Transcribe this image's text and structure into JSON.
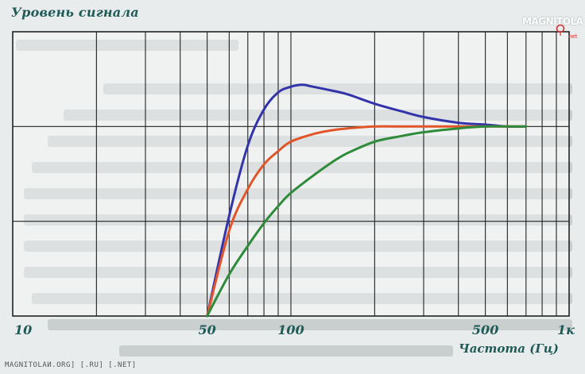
{
  "logo": {
    "text": "MAGNITOLA",
    "sub": "net"
  },
  "footer": "MAGNITOLAИ.ORG] [.RU] [.NET]",
  "chart_data": {
    "type": "line",
    "ylabel": "Уровень сигнала",
    "xlabel": "Частота (Гц)",
    "x_scale": "log",
    "xlim": [
      10,
      1000
    ],
    "ylim": [
      0,
      1.5
    ],
    "x_tick_labels": [
      {
        "x": 10,
        "label": "10"
      },
      {
        "x": 50,
        "label": "50"
      },
      {
        "x": 100,
        "label": "100"
      },
      {
        "x": 500,
        "label": "500"
      },
      {
        "x": 1000,
        "label": "1к"
      }
    ],
    "grid": true,
    "colors": {
      "series": [
        "#3333aa",
        "#e0562a",
        "#2e8b3a"
      ],
      "grid": "#222222",
      "label": "#1f5a57"
    },
    "series": [
      {
        "color": "#3333aa",
        "x": [
          50,
          60,
          70,
          80,
          90,
          100,
          110,
          120,
          140,
          160,
          200,
          250,
          300,
          400,
          500,
          600,
          700
        ],
        "y": [
          0,
          0.53,
          0.9,
          1.09,
          1.18,
          1.21,
          1.22,
          1.21,
          1.19,
          1.17,
          1.12,
          1.08,
          1.05,
          1.02,
          1.01,
          1.0,
          1.0
        ]
      },
      {
        "color": "#e0562a",
        "x": [
          50,
          60,
          70,
          80,
          90,
          100,
          120,
          140,
          160,
          200,
          250,
          300,
          400,
          500,
          600,
          700
        ],
        "y": [
          0,
          0.45,
          0.67,
          0.8,
          0.87,
          0.92,
          0.96,
          0.98,
          0.99,
          1.0,
          1.0,
          1.0,
          1.0,
          1.0,
          1.0,
          1.0
        ]
      },
      {
        "color": "#2e8b3a",
        "x": [
          50,
          60,
          70,
          80,
          90,
          100,
          120,
          140,
          160,
          200,
          250,
          300,
          400,
          500,
          600,
          700
        ],
        "y": [
          0,
          0.22,
          0.37,
          0.49,
          0.58,
          0.65,
          0.74,
          0.81,
          0.86,
          0.92,
          0.95,
          0.97,
          0.99,
          1.0,
          1.0,
          1.0
        ]
      }
    ]
  }
}
